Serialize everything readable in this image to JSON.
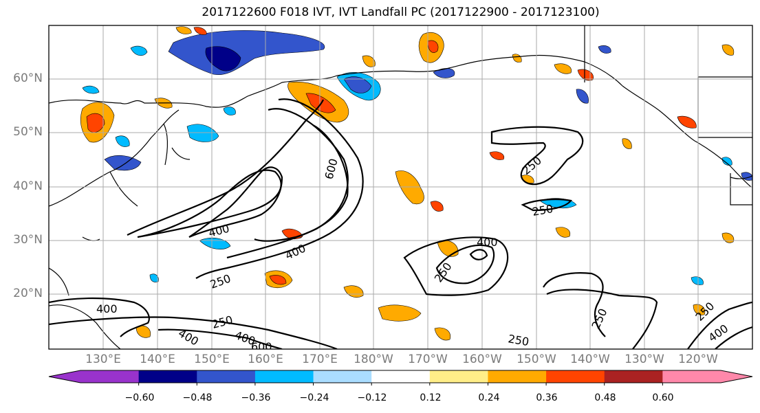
{
  "title": "2017122600 F018 IVT, IVT Landfall PC (2017122900 - 2017123100)",
  "lat_labels": [
    "60°N",
    "50°N",
    "40°N",
    "30°N",
    "20°N"
  ],
  "lon_labels": [
    "130°E",
    "140°E",
    "150°E",
    "160°E",
    "170°E",
    "180°W",
    "170°W",
    "160°W",
    "150°W",
    "140°W",
    "130°W",
    "120°W"
  ],
  "colorbar": {
    "tick_labels": [
      "−0.60",
      "−0.48",
      "−0.36",
      "−0.24",
      "−0.12",
      "0.12",
      "0.24",
      "0.36",
      "0.48",
      "0.60"
    ],
    "colors": [
      "#9933cc",
      "#000088",
      "#3355cc",
      "#00bbff",
      "#aaddff",
      "#ffffff",
      "#ffee88",
      "#ffaa00",
      "#ff4400",
      "#aa2222",
      "#ff88aa"
    ]
  },
  "contour_labels": [
    "600",
    "400",
    "400",
    "250",
    "250",
    "250",
    "400",
    "250",
    "400",
    "250",
    "400",
    "400",
    "600",
    "250",
    "250",
    "250",
    "400"
  ]
}
